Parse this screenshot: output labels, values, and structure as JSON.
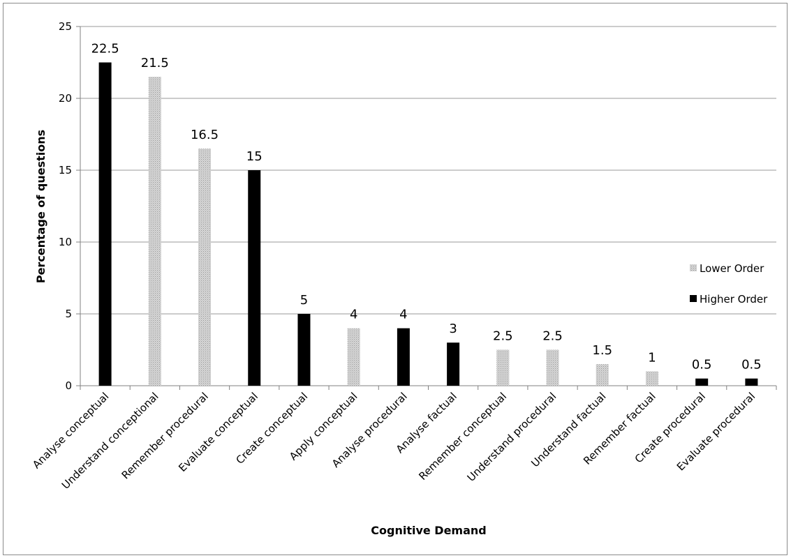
{
  "chart_data": {
    "type": "bar",
    "title": "",
    "xlabel": "Cognitive Demand",
    "ylabel": "Percentage of questions",
    "ylim": [
      0,
      25
    ],
    "yticks": [
      0,
      5,
      10,
      15,
      20,
      25
    ],
    "grid": true,
    "legend_position": "right",
    "categories": [
      "Analyse conceptual",
      "Understand conceptional",
      "Remember procedural",
      "Evaluate conceptual",
      "Create conceptual",
      "Apply conceptual",
      "Analyse procedural",
      "Analyse factual",
      "Remember conceptual",
      "Understand procedural",
      "Understand factual",
      "Remember factual",
      "Create procedural",
      "Evaluate procedural"
    ],
    "series": [
      {
        "name": "Lower Order",
        "color": "#c8c8c8",
        "values": [
          null,
          21.5,
          16.5,
          null,
          null,
          4,
          null,
          null,
          2.5,
          2.5,
          1.5,
          1,
          null,
          null
        ]
      },
      {
        "name": "Higher Order",
        "color": "#000000",
        "values": [
          22.5,
          null,
          null,
          15,
          5,
          null,
          4,
          3,
          null,
          null,
          null,
          null,
          0.5,
          0.5
        ]
      }
    ],
    "data_labels": [
      "22.5",
      "21.5",
      "16.5",
      "15",
      "5",
      "4",
      "4",
      "3",
      "2.5",
      "2.5",
      "1.5",
      "1",
      "0.5",
      "0.5"
    ]
  }
}
